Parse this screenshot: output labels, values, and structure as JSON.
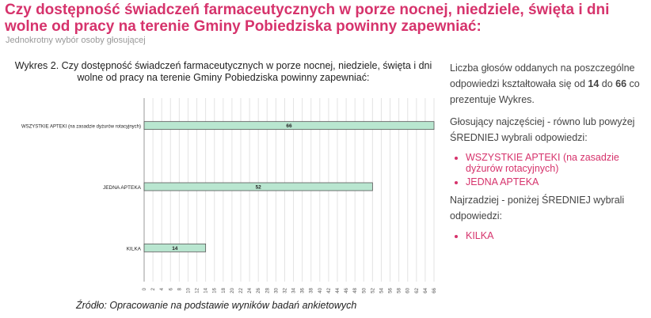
{
  "header": {
    "title": "Czy dostępność świadczeń farmaceutycznych w porze nocnej, niedziele, święta i dni wolne od pracy na terenie Gminy Pobiedziska powinny zapewniać:",
    "subtitle": "Jednokrotny wybór osoby głosującej"
  },
  "chart_data": {
    "type": "bar",
    "orientation": "horizontal",
    "title": "Wykres 2. Czy dostępność świadczeń farmaceutycznych w porze nocnej, niedziele, święta i dni wolne od pracy na terenie Gminy Pobiedziska powinny zapewniać:",
    "categories": [
      "WSZYSTKIE APTEKI (na zasadzie dyżurów rotacyjnych)",
      "JEDNA APTEKA",
      "KILKA"
    ],
    "values": [
      66,
      52,
      14
    ],
    "data_labels": [
      "66",
      "52",
      "14"
    ],
    "xlim": [
      0,
      66
    ],
    "xticks": [
      "0",
      "2",
      "4",
      "6",
      "8",
      "10",
      "12",
      "14",
      "16",
      "18",
      "20",
      "22",
      "24",
      "26",
      "28",
      "30",
      "32",
      "34",
      "36",
      "38",
      "40",
      "42",
      "44",
      "46",
      "48",
      "50",
      "52",
      "54",
      "56",
      "58",
      "60",
      "62",
      "64",
      "66"
    ],
    "grid": true,
    "bar_color": "#b9e6d0",
    "bar_border": "#555555"
  },
  "source": "Źródło: Opracowanie na podstawie wyników badań ankietowych",
  "summary": {
    "p1_a": "Liczba głosów oddanych na poszczególne odpowiedzi kształtowała się od ",
    "min": "14",
    "p1_b": " do ",
    "max": "66",
    "p1_c": " co prezentuje Wykres.",
    "p2": "Głosujący najczęściej - równo lub powyżej ŚREDNIEJ wybrali odpowiedzi:",
    "above": [
      "WSZYSTKIE APTEKI (na zasadzie dyżurów rotacyjnych)",
      "JEDNA APTEKA"
    ],
    "p3": "Najrzadziej - poniżej ŚREDNIEJ wybrali odpowiedzi:",
    "below": [
      "KILKA"
    ],
    "accent": "#d6336c"
  }
}
